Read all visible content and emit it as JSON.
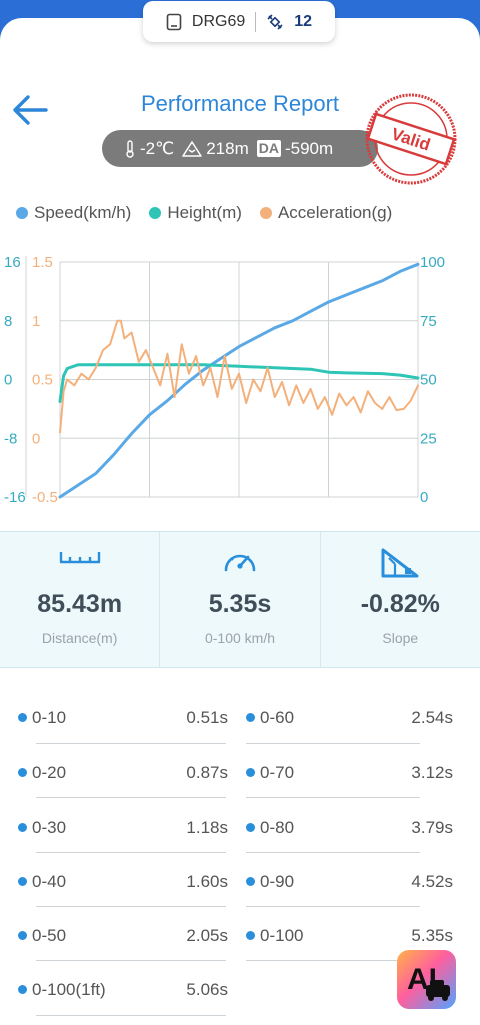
{
  "device": {
    "name": "DRG69",
    "satellites": "12"
  },
  "header": {
    "title": "Performance Report"
  },
  "conditions": {
    "temperature": "-2℃",
    "altitude": "218m",
    "da_label": "DA",
    "density_altitude": "-590m"
  },
  "stamp": {
    "text": "Valid"
  },
  "legend": [
    {
      "label": "Speed(km/h)",
      "color": "#5aa9e6"
    },
    {
      "label": "Height(m)",
      "color": "#2ec4b6"
    },
    {
      "label": "Acceleration(g)",
      "color": "#f4b07a"
    }
  ],
  "chart_data": {
    "type": "line",
    "axes": {
      "height_ticks": [
        "16",
        "8",
        "0",
        "-8",
        "-16"
      ],
      "height_range": [
        -16,
        16
      ],
      "accel_ticks": [
        "1.5",
        "1",
        "0.5",
        "0",
        "-0.5"
      ],
      "accel_range": [
        -0.5,
        1.5
      ],
      "speed_ticks": [
        "100",
        "75",
        "50",
        "25",
        "0"
      ],
      "speed_range": [
        0,
        100
      ],
      "x_range": [
        0,
        1
      ]
    },
    "grid": true,
    "series": [
      {
        "name": "Speed(km/h)",
        "color": "#5aa9e6",
        "x": [
          0,
          0.05,
          0.1,
          0.15,
          0.2,
          0.25,
          0.3,
          0.35,
          0.4,
          0.45,
          0.5,
          0.55,
          0.6,
          0.65,
          0.7,
          0.75,
          0.8,
          0.85,
          0.9,
          0.95,
          1.0
        ],
        "values": [
          0,
          5,
          10,
          18,
          27,
          35,
          41,
          48,
          54,
          59,
          64,
          68,
          72,
          75,
          79,
          83,
          86,
          89,
          92,
          96,
          99
        ]
      },
      {
        "name": "Height(m)",
        "color": "#2ec4b6",
        "x": [
          0,
          0.01,
          0.02,
          0.05,
          0.1,
          0.2,
          0.3,
          0.4,
          0.5,
          0.6,
          0.7,
          0.75,
          0.8,
          0.9,
          0.95,
          1.0
        ],
        "values": [
          -3,
          0.5,
          1.5,
          2,
          2,
          2,
          2,
          2,
          1.8,
          1.6,
          1.4,
          1.0,
          0.9,
          0.8,
          0.6,
          0.2
        ]
      },
      {
        "name": "Acceleration(g)",
        "color": "#f4b07a",
        "x": [
          0,
          0.01,
          0.02,
          0.04,
          0.06,
          0.08,
          0.1,
          0.12,
          0.14,
          0.16,
          0.17,
          0.18,
          0.2,
          0.22,
          0.24,
          0.26,
          0.28,
          0.3,
          0.32,
          0.34,
          0.36,
          0.38,
          0.4,
          0.42,
          0.44,
          0.46,
          0.48,
          0.5,
          0.52,
          0.54,
          0.56,
          0.58,
          0.6,
          0.62,
          0.64,
          0.66,
          0.68,
          0.7,
          0.72,
          0.74,
          0.76,
          0.78,
          0.8,
          0.82,
          0.84,
          0.86,
          0.88,
          0.9,
          0.92,
          0.94,
          0.96,
          0.98,
          1.0
        ],
        "values": [
          0.05,
          0.4,
          0.5,
          0.45,
          0.55,
          0.5,
          0.6,
          0.75,
          0.8,
          1.0,
          1.0,
          0.85,
          0.9,
          0.65,
          0.75,
          0.6,
          0.45,
          0.72,
          0.35,
          0.8,
          0.55,
          0.7,
          0.45,
          0.6,
          0.35,
          0.7,
          0.42,
          0.55,
          0.3,
          0.5,
          0.4,
          0.6,
          0.35,
          0.48,
          0.28,
          0.45,
          0.3,
          0.42,
          0.25,
          0.35,
          0.2,
          0.38,
          0.28,
          0.35,
          0.22,
          0.4,
          0.3,
          0.25,
          0.35,
          0.24,
          0.25,
          0.32,
          0.45
        ]
      }
    ]
  },
  "stats": [
    {
      "value": "85.43m",
      "label": "Distance(m)",
      "icon": "ruler-icon"
    },
    {
      "value": "5.35s",
      "label": "0-100 km/h",
      "icon": "speedometer-icon"
    },
    {
      "value": "-0.82%",
      "label": "Slope",
      "icon": "slope-icon"
    }
  ],
  "splits": [
    {
      "label": "0-10",
      "time": "0.51s"
    },
    {
      "label": "0-60",
      "time": "2.54s"
    },
    {
      "label": "0-20",
      "time": "0.87s"
    },
    {
      "label": "0-70",
      "time": "3.12s"
    },
    {
      "label": "0-30",
      "time": "1.18s"
    },
    {
      "label": "0-80",
      "time": "3.79s"
    },
    {
      "label": "0-40",
      "time": "1.60s"
    },
    {
      "label": "0-90",
      "time": "4.52s"
    },
    {
      "label": "0-50",
      "time": "2.05s"
    },
    {
      "label": "0-100",
      "time": "5.35s"
    },
    {
      "label": "0-100(1ft)",
      "time": "5.06s"
    }
  ],
  "ai_badge": {
    "text": "AI"
  }
}
